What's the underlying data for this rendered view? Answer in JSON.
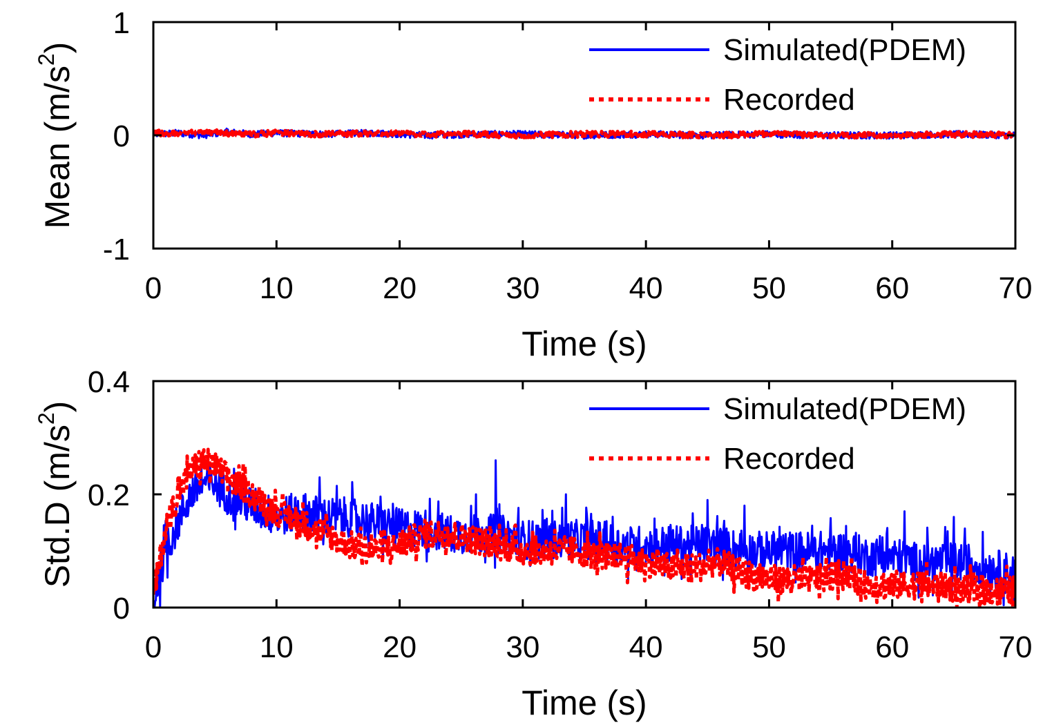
{
  "chart_data": [
    {
      "type": "line",
      "panel": "top",
      "xlabel": "Time (s)",
      "ylabel": "Mean (m/s",
      "ylabel_sup": "2",
      "ylabel_close": ")",
      "xlim": [
        0,
        70
      ],
      "ylim": [
        -1,
        1
      ],
      "xticks": [
        0,
        10,
        20,
        30,
        40,
        50,
        60,
        70
      ],
      "xtick_labels": [
        "0",
        "10",
        "20",
        "30",
        "40",
        "50",
        "60",
        "70"
      ],
      "yticks": [
        -1,
        0,
        1
      ],
      "ytick_labels": [
        "-1",
        "0",
        "1"
      ],
      "legend": {
        "position": "top-right",
        "entries": [
          "Simulated(PDEM)",
          "Recorded"
        ]
      },
      "series": [
        {
          "name": "Simulated(PDEM)",
          "color": "#0000ff",
          "style": "solid",
          "x": [
            0,
            2,
            4,
            6,
            8,
            10,
            14,
            18,
            22,
            26,
            30,
            35,
            40,
            45,
            50,
            55,
            60,
            65,
            70
          ],
          "values": [
            0.01,
            0.02,
            0.0,
            0.03,
            0.01,
            0.02,
            0.01,
            0.02,
            0.0,
            0.01,
            0.01,
            0.0,
            0.01,
            0.0,
            0.01,
            0.0,
            0.0,
            0.01,
            0.0
          ],
          "noise_amplitude": 0.03
        },
        {
          "name": "Recorded",
          "color": "#ff0000",
          "style": "dotted",
          "x": [
            0,
            2,
            4,
            6,
            8,
            10,
            14,
            18,
            22,
            26,
            30,
            35,
            40,
            45,
            50,
            55,
            60,
            65,
            70
          ],
          "values": [
            0.02,
            0.02,
            0.03,
            0.02,
            0.01,
            0.02,
            0.01,
            0.02,
            0.01,
            0.01,
            0.0,
            0.01,
            0.01,
            0.0,
            0.01,
            0.0,
            0.0,
            0.01,
            0.0
          ],
          "noise_amplitude": 0.025
        }
      ]
    },
    {
      "type": "line",
      "panel": "bottom",
      "xlabel": "Time (s)",
      "ylabel": "Std.D (m/s",
      "ylabel_sup": "2",
      "ylabel_close": ")",
      "xlim": [
        0,
        70
      ],
      "ylim": [
        0,
        0.4
      ],
      "xticks": [
        0,
        10,
        20,
        30,
        40,
        50,
        60,
        70
      ],
      "xtick_labels": [
        "0",
        "10",
        "20",
        "30",
        "40",
        "50",
        "60",
        "70"
      ],
      "yticks": [
        0,
        0.2,
        0.4
      ],
      "ytick_labels": [
        "0",
        "0.2",
        "0.4"
      ],
      "legend": {
        "position": "top-right",
        "entries": [
          "Simulated(PDEM)",
          "Recorded"
        ]
      },
      "series": [
        {
          "name": "Simulated(PDEM)",
          "color": "#0000ff",
          "style": "solid",
          "x": [
            0,
            0.5,
            1,
            2,
            3,
            4,
            5,
            6,
            8,
            10,
            12,
            14,
            16,
            18,
            20,
            22,
            24,
            26,
            28,
            30,
            32,
            34,
            36,
            38,
            40,
            42,
            44,
            46,
            48,
            50,
            52,
            54,
            56,
            58,
            60,
            62,
            64,
            66,
            68,
            70
          ],
          "values": [
            0.0,
            0.06,
            0.1,
            0.15,
            0.2,
            0.22,
            0.22,
            0.2,
            0.18,
            0.16,
            0.17,
            0.16,
            0.16,
            0.15,
            0.14,
            0.14,
            0.13,
            0.13,
            0.13,
            0.12,
            0.12,
            0.12,
            0.12,
            0.11,
            0.11,
            0.11,
            0.11,
            0.11,
            0.1,
            0.1,
            0.1,
            0.1,
            0.1,
            0.09,
            0.09,
            0.08,
            0.08,
            0.08,
            0.07,
            0.06
          ],
          "noise_amplitude": 0.035,
          "spikes": [
            [
              13.5,
              0.23
            ],
            [
              27.8,
              0.26
            ],
            [
              26.2,
              0.2
            ],
            [
              33.5,
              0.2
            ],
            [
              45,
              0.19
            ],
            [
              48,
              0.18
            ],
            [
              61,
              0.17
            ],
            [
              65,
              0.16
            ]
          ]
        },
        {
          "name": "Recorded",
          "color": "#ff0000",
          "style": "dotted",
          "x": [
            0,
            0.5,
            1,
            2,
            3,
            4,
            5,
            6,
            8,
            10,
            12,
            14,
            16,
            18,
            20,
            22,
            24,
            26,
            28,
            30,
            32,
            34,
            36,
            38,
            40,
            42,
            44,
            46,
            48,
            50,
            52,
            54,
            56,
            58,
            60,
            62,
            64,
            66,
            68,
            70
          ],
          "values": [
            0.02,
            0.08,
            0.14,
            0.2,
            0.24,
            0.26,
            0.25,
            0.23,
            0.2,
            0.17,
            0.15,
            0.13,
            0.11,
            0.1,
            0.11,
            0.13,
            0.13,
            0.12,
            0.11,
            0.1,
            0.1,
            0.1,
            0.09,
            0.09,
            0.08,
            0.07,
            0.07,
            0.08,
            0.06,
            0.05,
            0.05,
            0.05,
            0.06,
            0.04,
            0.04,
            0.04,
            0.04,
            0.03,
            0.03,
            0.03
          ],
          "noise_amplitude": 0.025
        }
      ]
    }
  ]
}
